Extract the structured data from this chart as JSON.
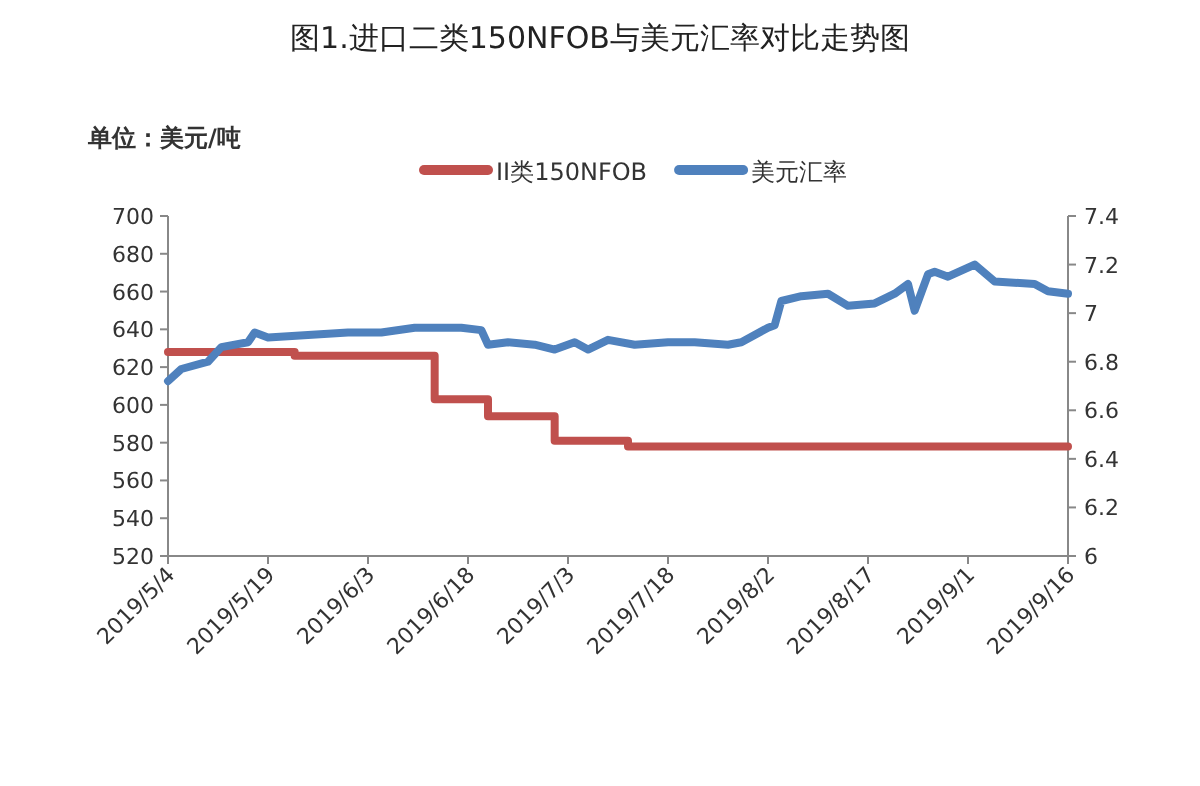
{
  "chart_data": {
    "type": "line",
    "title": "图1.进口二类150NFOB与美元汇率对比走势图",
    "ylabel": "单位：美元/吨",
    "xlim": [
      "2019-05-04",
      "2019-09-16"
    ],
    "xticks": [
      {
        "value": "2019-05-04",
        "label": "2019/5/4"
      },
      {
        "value": "2019-05-19",
        "label": "2019/5/19"
      },
      {
        "value": "2019-06-03",
        "label": "2019/6/3"
      },
      {
        "value": "2019-06-18",
        "label": "2019/6/18"
      },
      {
        "value": "2019-07-03",
        "label": "2019/7/3"
      },
      {
        "value": "2019-07-18",
        "label": "2019/7/18"
      },
      {
        "value": "2019-08-02",
        "label": "2019/8/2"
      },
      {
        "value": "2019-08-17",
        "label": "2019/8/17"
      },
      {
        "value": "2019-09-01",
        "label": "2019/9/1"
      },
      {
        "value": "2019-09-16",
        "label": "2019/9/16"
      }
    ],
    "ylim": [
      520,
      700
    ],
    "yticks": [
      520,
      540,
      560,
      580,
      600,
      620,
      640,
      660,
      680,
      700
    ],
    "y2lim": [
      6,
      7.4
    ],
    "y2ticks": [
      6,
      6.2,
      6.4,
      6.6,
      6.8,
      7,
      7.2,
      7.4
    ],
    "grid": false,
    "legend": "top",
    "line_style": "solid",
    "marker": "none",
    "series": [
      {
        "name": "II类150NFOB",
        "type": "step",
        "color": "#c0504d",
        "x": [
          "2019-05-04",
          "2019-05-23",
          "2019-06-13",
          "2019-06-21",
          "2019-07-01",
          "2019-07-12",
          "2019-09-16"
        ],
        "values": [
          628,
          626,
          603,
          594,
          581,
          578,
          578
        ]
      },
      {
        "name": "美元汇率",
        "type": "line",
        "axis": "y2",
        "color": "#4f81bd",
        "x": [
          "2019-05-04",
          "2019-05-06",
          "2019-05-10",
          "2019-05-12",
          "2019-05-16",
          "2019-05-17",
          "2019-05-19",
          "2019-05-25",
          "2019-05-31",
          "2019-06-05",
          "2019-06-10",
          "2019-06-17",
          "2019-06-20",
          "2019-06-21",
          "2019-06-24",
          "2019-06-28",
          "2019-07-01",
          "2019-07-04",
          "2019-07-06",
          "2019-07-09",
          "2019-07-13",
          "2019-07-18",
          "2019-07-22",
          "2019-07-27",
          "2019-07-29",
          "2019-08-02",
          "2019-08-03",
          "2019-08-04",
          "2019-08-07",
          "2019-08-11",
          "2019-08-14",
          "2019-08-18",
          "2019-08-21",
          "2019-08-23",
          "2019-08-24",
          "2019-08-26",
          "2019-08-27",
          "2019-08-29",
          "2019-09-02",
          "2019-09-05",
          "2019-09-11",
          "2019-09-13",
          "2019-09-16"
        ],
        "values": [
          6.72,
          6.77,
          6.8,
          6.86,
          6.88,
          6.92,
          6.9,
          6.91,
          6.92,
          6.92,
          6.94,
          6.94,
          6.93,
          6.87,
          6.88,
          6.87,
          6.85,
          6.88,
          6.85,
          6.89,
          6.87,
          6.88,
          6.88,
          6.87,
          6.88,
          6.94,
          6.95,
          7.05,
          7.07,
          7.08,
          7.03,
          7.04,
          7.08,
          7.12,
          7.01,
          7.16,
          7.17,
          7.15,
          7.2,
          7.13,
          7.12,
          7.09,
          7.08
        ]
      }
    ]
  }
}
